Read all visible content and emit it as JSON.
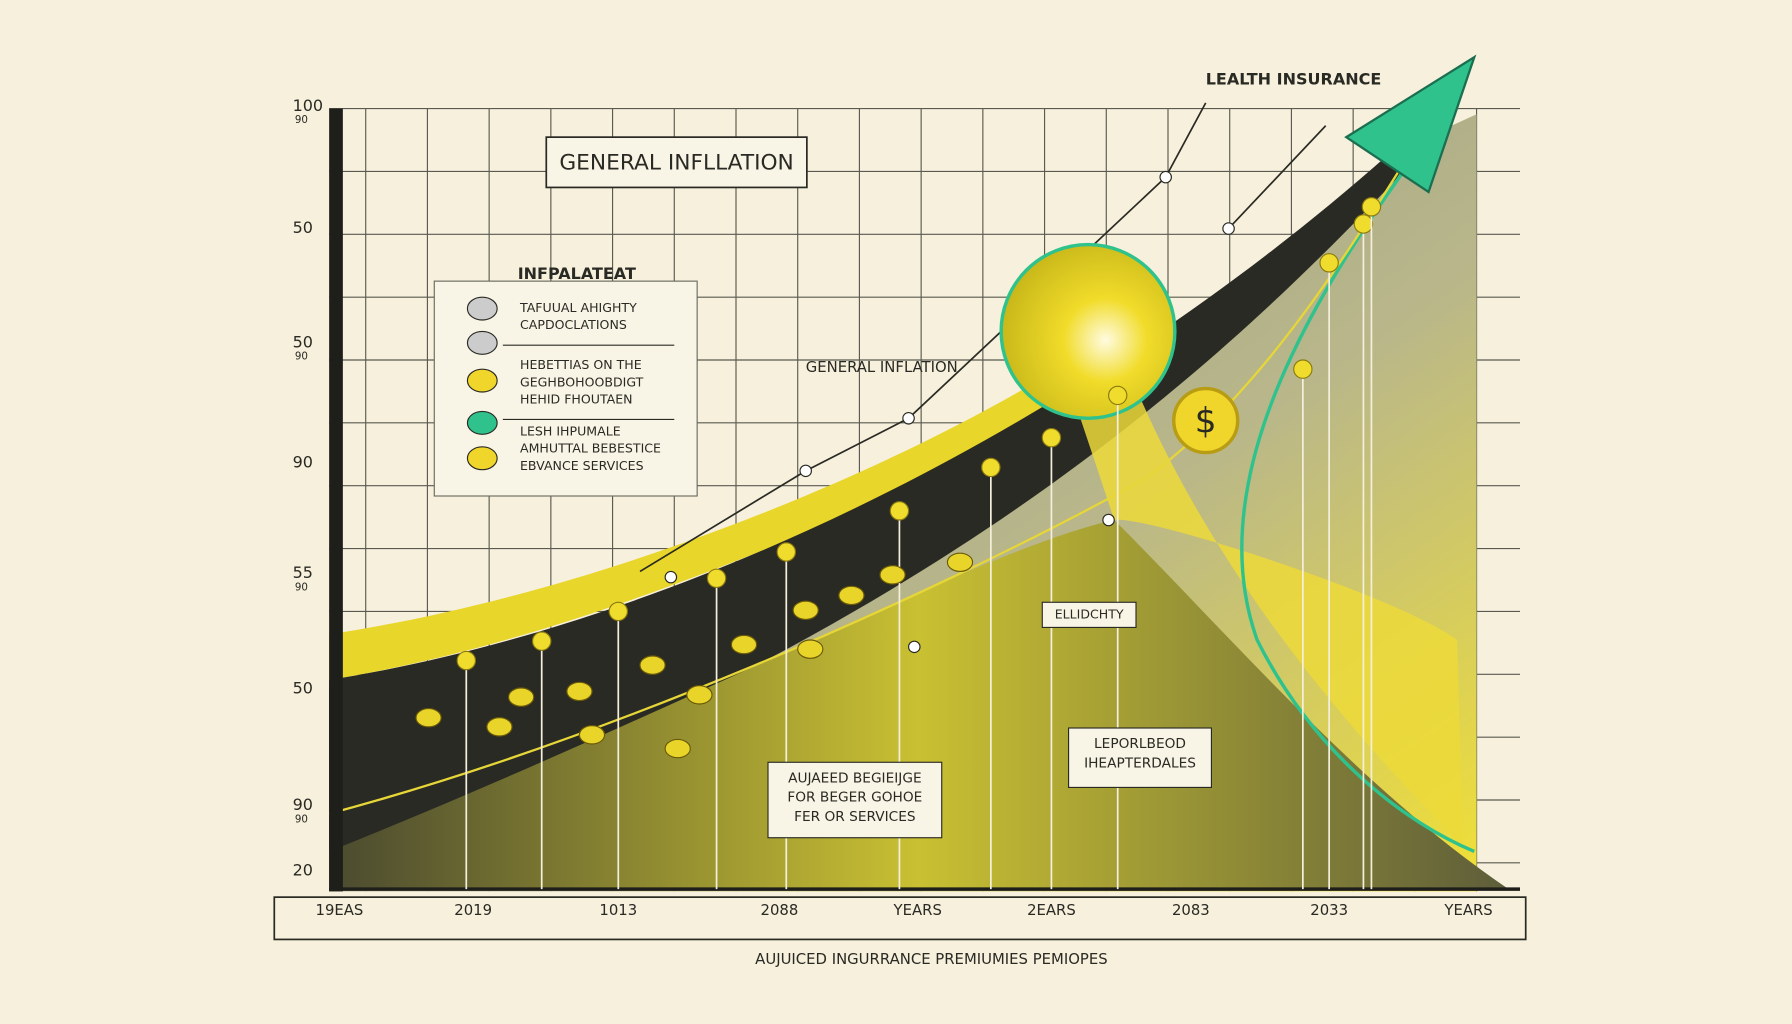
{
  "header": {
    "corner_label": "LEALTH INSURANCE"
  },
  "callouts": {
    "general_inflation_box": "GENERAL INFLLATION",
    "general_inflation": "GENERAL INFLATION",
    "badge": "ELLIDCHTY",
    "coin": "$"
  },
  "legend": {
    "title": "INFPALATEAT",
    "items": [
      {
        "lines": [
          "TAFUUAL AHIGHTY",
          "CAPDOCLATIONS"
        ]
      },
      {
        "lines": [
          "HEBETTIAS ON THE",
          "GEGHBOHOOBDIGT",
          "HEHID FHOUTAEN"
        ]
      },
      {
        "lines": [
          "LESH IHPUMALE",
          "AMHUTTAL BEBESTICE",
          "EBVANCE SERVICES"
        ]
      }
    ]
  },
  "notes": [
    {
      "lines": [
        "AUJAEED BEGIEIJGE",
        "FOR BEGER GOHOE",
        "FER OR SERVICES"
      ]
    },
    {
      "lines": [
        "LEPORLBEOD",
        "IHEAPTERDALES"
      ]
    }
  ],
  "y_axis": {
    "labels": [
      {
        "main": "100",
        "sub": "90"
      },
      {
        "main": "50"
      },
      {
        "main": "50",
        "sub": "90"
      },
      {
        "main": "90"
      },
      {
        "main": "55",
        "sub": "90"
      },
      {
        "main": "50"
      },
      {
        "main": "90",
        "sub": "90"
      },
      {
        "main": "20"
      }
    ]
  },
  "x_axis": {
    "labels": [
      "19EAS",
      "2019",
      "1013",
      "2088",
      "YEARS",
      "2EARS",
      "2083",
      "2033",
      "YEARS"
    ],
    "title": "AUJUICED INGURRANCE PREMIUMIES PEMIOPES"
  }
}
